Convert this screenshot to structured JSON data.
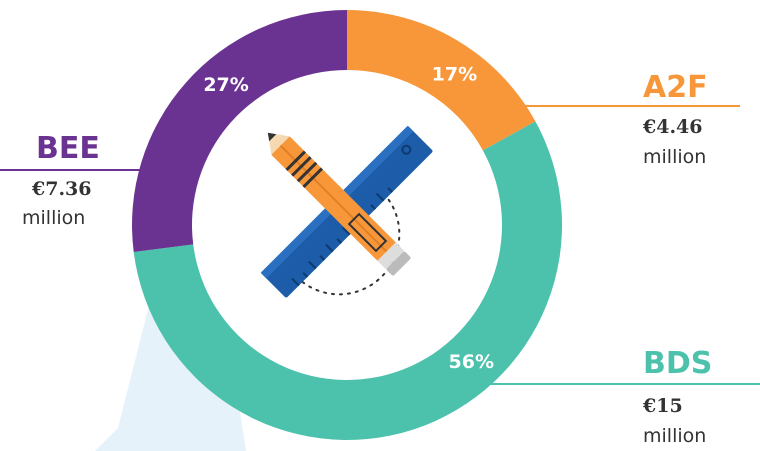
{
  "chart_data": {
    "type": "pie",
    "variant": "donut",
    "series": [
      {
        "name": "A2F",
        "percent": 17,
        "percent_label": "17%",
        "amount": "€4.46",
        "unit": "million",
        "color": "#F7973A"
      },
      {
        "name": "BDS",
        "percent": 56,
        "percent_label": "56%",
        "amount": "€15",
        "unit": "million",
        "color": "#4CC2AD"
      },
      {
        "name": "BEE",
        "percent": 27,
        "percent_label": "27%",
        "amount": "€7.36",
        "unit": "million",
        "color": "#6B3391"
      }
    ],
    "center_icon": "pencil-and-ruler-icon",
    "legend_placement": "around"
  }
}
